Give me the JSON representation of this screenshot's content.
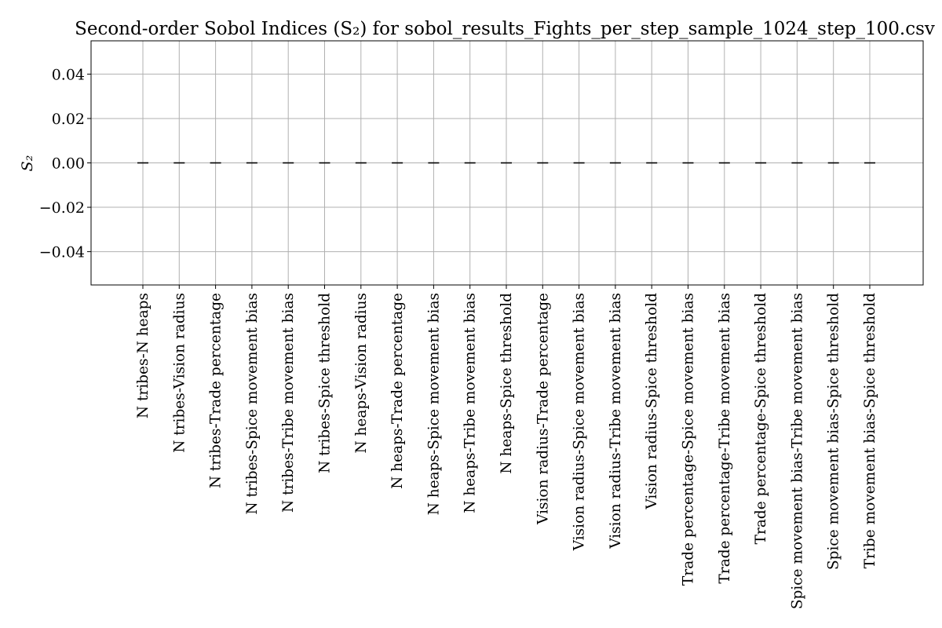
{
  "chart_data": {
    "type": "bar",
    "title": "Second-order Sobol Indices (S₂) for sobol_results_Fights_per_step_sample_1024_step_100.csv",
    "xlabel": "",
    "ylabel": "S₂",
    "ylim": [
      -0.055,
      0.055
    ],
    "yticks": [
      -0.04,
      -0.02,
      0.0,
      0.02,
      0.04
    ],
    "ytick_labels": [
      "−0.04",
      "−0.02",
      "0.00",
      "0.02",
      "0.04"
    ],
    "grid": true,
    "categories": [
      "N tribes-N heaps",
      "N tribes-Vision radius",
      "N tribes-Trade percentage",
      "N tribes-Spice movement bias",
      "N tribes-Tribe movement bias",
      "N tribes-Spice threshold",
      "N heaps-Vision radius",
      "N heaps-Trade percentage",
      "N heaps-Spice movement bias",
      "N heaps-Tribe movement bias",
      "N heaps-Spice threshold",
      "Vision radius-Trade percentage",
      "Vision radius-Spice movement bias",
      "Vision radius-Tribe movement bias",
      "Vision radius-Spice threshold",
      "Trade percentage-Spice movement bias",
      "Trade percentage-Tribe movement bias",
      "Trade percentage-Spice threshold",
      "Spice movement bias-Tribe movement bias",
      "Spice movement bias-Spice threshold",
      "Tribe movement bias-Spice threshold"
    ],
    "values": [
      0,
      0,
      0,
      0,
      0,
      0,
      0,
      0,
      0,
      0,
      0,
      0,
      0,
      0,
      0,
      0,
      0,
      0,
      0,
      0,
      0
    ],
    "colors": {
      "mark": "#000000",
      "grid": "#b0b0b0",
      "axes": "#000000"
    }
  }
}
